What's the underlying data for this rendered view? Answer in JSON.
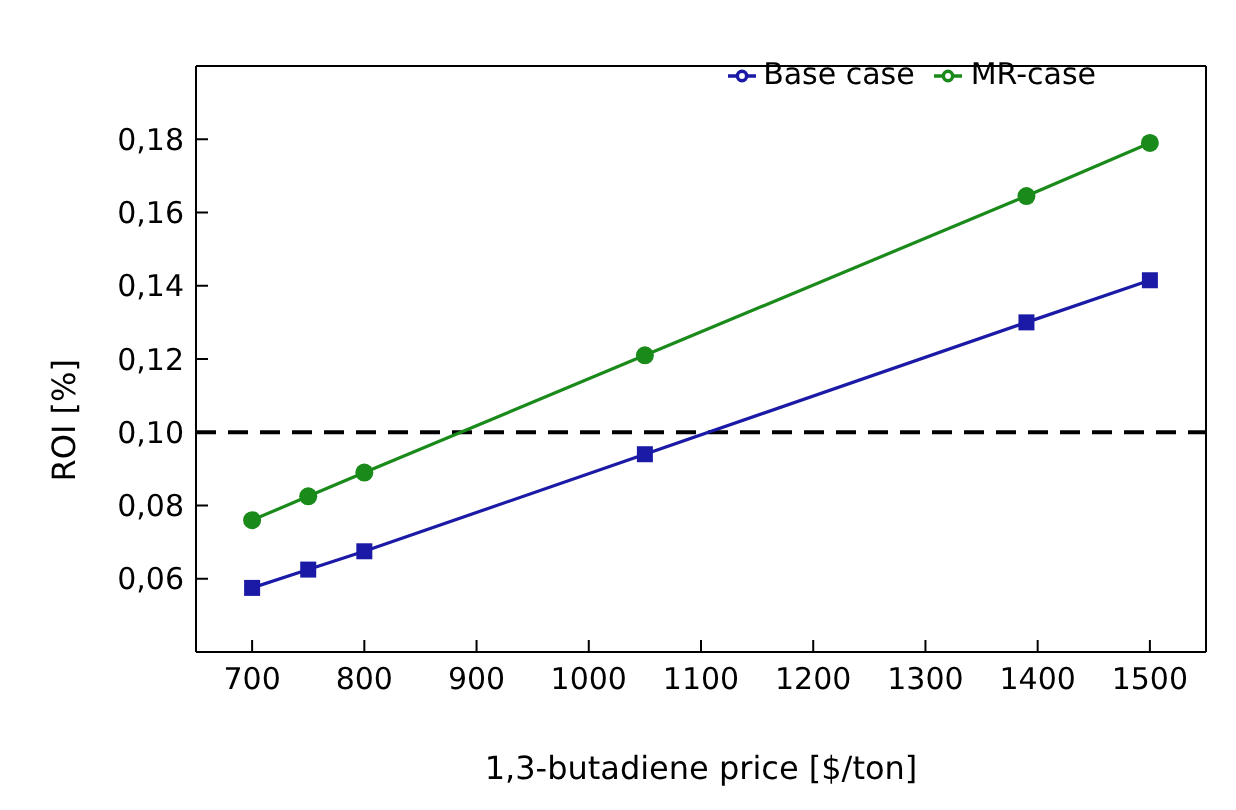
{
  "chart_data": {
    "type": "line",
    "xlabel": "1,3-butadiene price [$/ton]",
    "ylabel": "ROI [%]",
    "x": [
      700,
      750,
      800,
      1050,
      1390,
      1500
    ],
    "series": [
      {
        "name": "Base case",
        "color": "#1a1aa6",
        "marker": "square",
        "values": [
          0.0575,
          0.0625,
          0.0675,
          0.094,
          0.13,
          0.1415
        ]
      },
      {
        "name": "MR-case",
        "color": "#1a8a1a",
        "marker": "circle",
        "values": [
          0.076,
          0.0825,
          0.089,
          0.121,
          0.1645,
          0.179
        ]
      }
    ],
    "xlim": [
      650,
      1550
    ],
    "xticks": [
      700,
      800,
      900,
      1000,
      1100,
      1200,
      1300,
      1400,
      1500
    ],
    "ylim": [
      0.04,
      0.2
    ],
    "yticks": [
      {
        "value": 0.06,
        "label": "0,06"
      },
      {
        "value": 0.08,
        "label": "0,08"
      },
      {
        "value": 0.1,
        "label": "0,10"
      },
      {
        "value": 0.12,
        "label": "0,12"
      },
      {
        "value": 0.14,
        "label": "0,14"
      },
      {
        "value": 0.16,
        "label": "0,16"
      },
      {
        "value": 0.18,
        "label": "0,18"
      }
    ],
    "ref_lines": [
      {
        "axis": "y",
        "value": 0.1,
        "color": "#000000",
        "line_style": "dashed"
      }
    ],
    "legend": "top right",
    "grid": false
  }
}
